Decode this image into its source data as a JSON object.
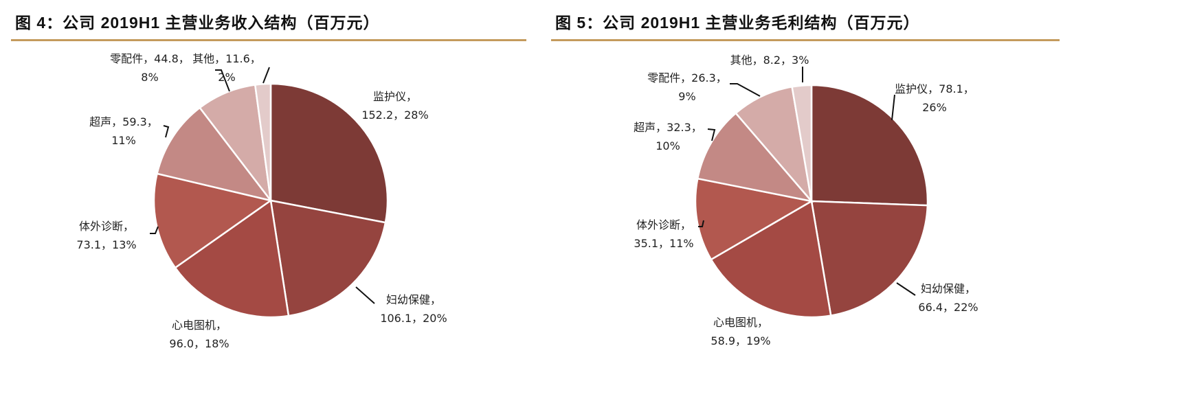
{
  "chart_data": [
    {
      "type": "pie",
      "title": "图 4：公司 2019H1 主营业务收入结构（百万元）",
      "slices": [
        {
          "label": "监护仪",
          "value": 152.2,
          "percent": "28%",
          "color": "#7d3a36"
        },
        {
          "label": "妇幼保健",
          "value": 106.1,
          "percent": "20%",
          "color": "#95443f"
        },
        {
          "label": "心电图机",
          "value": 96.0,
          "percent": "18%",
          "color": "#a44a44"
        },
        {
          "label": "体外诊断",
          "value": 73.1,
          "percent": "13%",
          "color": "#b2584f"
        },
        {
          "label": "超声",
          "value": 59.3,
          "percent": "11%",
          "color": "#c38985"
        },
        {
          "label": "零配件",
          "value": 44.8,
          "percent": "8%",
          "color": "#d4aba8"
        },
        {
          "label": "其他",
          "value": 11.6,
          "percent": "2%",
          "color": "#e3cbca"
        }
      ],
      "label_text": [
        [
          "监护仪，",
          "152.2，28%"
        ],
        [
          "妇幼保健，",
          "106.1，20%"
        ],
        [
          "心电图机，",
          "96.0，18%"
        ],
        [
          "体外诊断，",
          "73.1，13%"
        ],
        [
          "超声，59.3，",
          "11%"
        ],
        [
          "零配件，44.8，",
          "8%"
        ],
        [
          "其他，11.6，",
          "2%"
        ]
      ]
    },
    {
      "type": "pie",
      "title": "图 5：公司 2019H1 主营业务毛利结构（百万元）",
      "slices": [
        {
          "label": "监护仪",
          "value": 78.1,
          "percent": "26%",
          "color": "#7d3a36"
        },
        {
          "label": "妇幼保健",
          "value": 66.4,
          "percent": "22%",
          "color": "#95443f"
        },
        {
          "label": "心电图机",
          "value": 58.9,
          "percent": "19%",
          "color": "#a44a44"
        },
        {
          "label": "体外诊断",
          "value": 35.1,
          "percent": "11%",
          "color": "#b2584f"
        },
        {
          "label": "超声",
          "value": 32.3,
          "percent": "10%",
          "color": "#c38985"
        },
        {
          "label": "零配件",
          "value": 26.3,
          "percent": "9%",
          "color": "#d4aba8"
        },
        {
          "label": "其他",
          "value": 8.2,
          "percent": "3%",
          "color": "#e3cbca"
        }
      ],
      "label_text": [
        [
          "监护仪，78.1，",
          "26%"
        ],
        [
          "妇幼保健，",
          "66.4，22%"
        ],
        [
          "心电图机，",
          "58.9，19%"
        ],
        [
          "体外诊断，",
          "35.1，11%"
        ],
        [
          "超声，32.3，",
          "10%"
        ],
        [
          "零配件，26.3，",
          "9%"
        ],
        [
          "其他，8.2，3%",
          ""
        ]
      ]
    }
  ],
  "accent_rule_color": "#c49a5d"
}
